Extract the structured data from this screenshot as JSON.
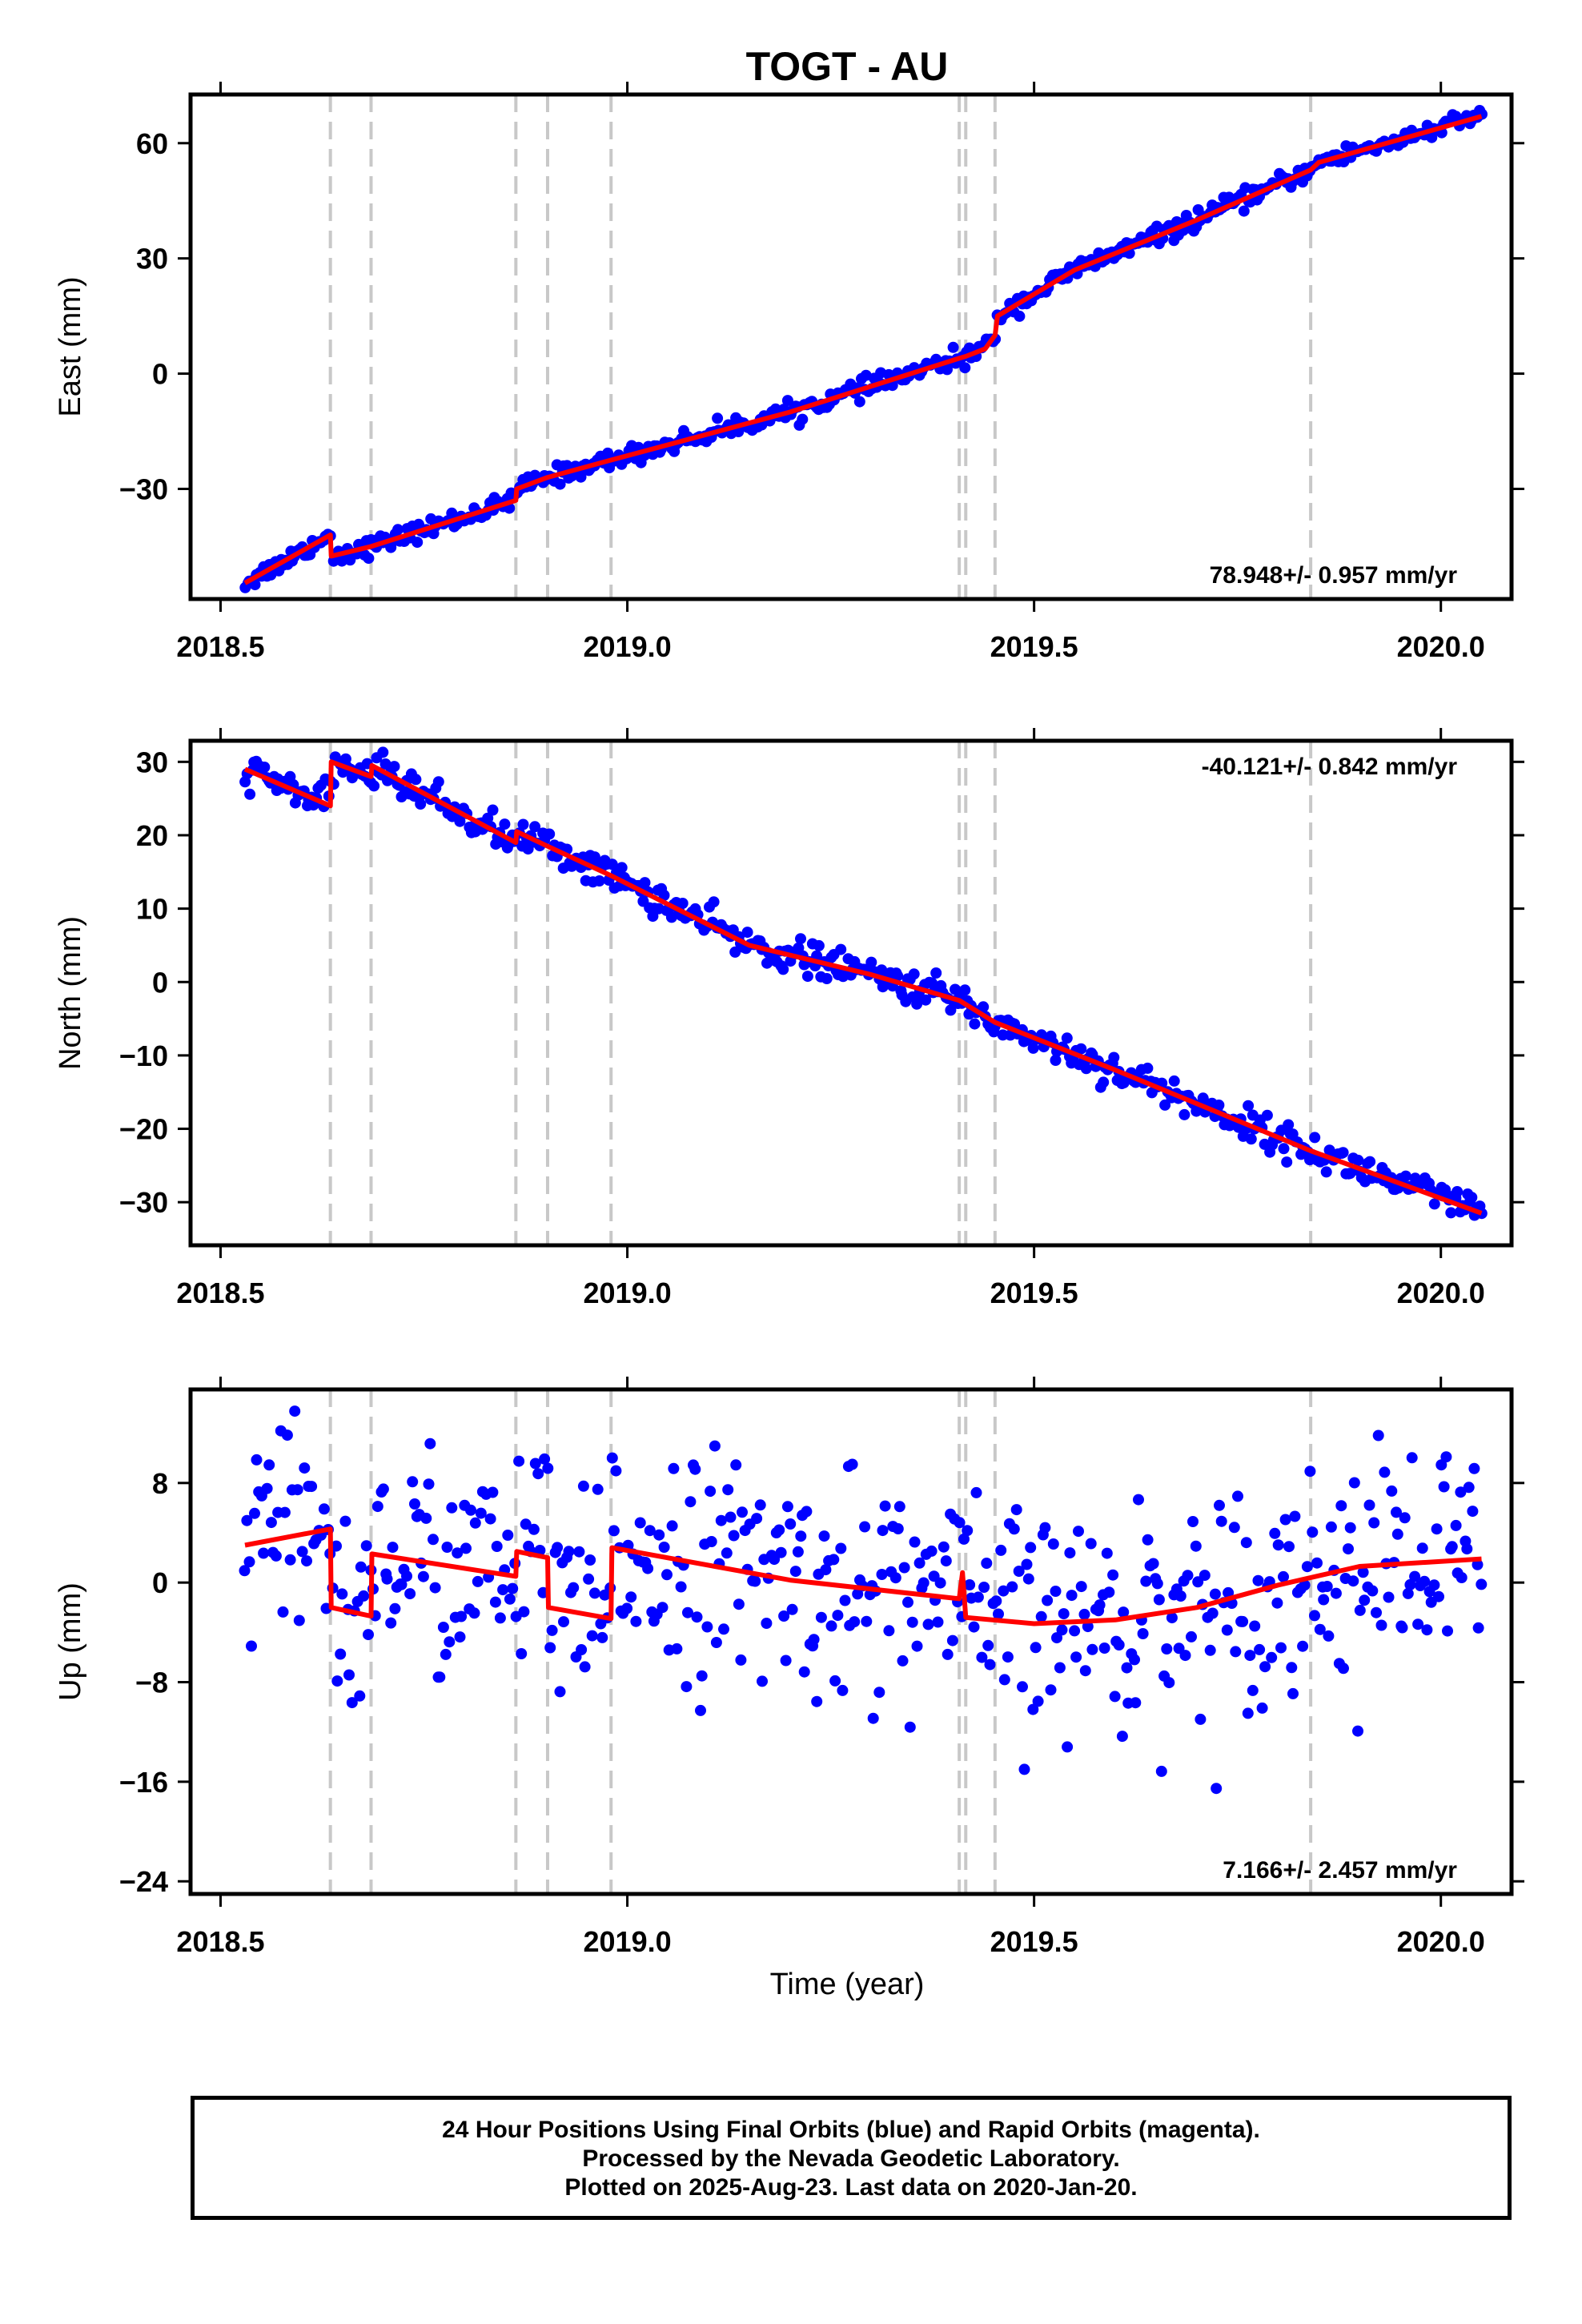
{
  "chart_data": {
    "type": "scatter",
    "title": "TOGT - AU",
    "xlabel": "Time (year)",
    "x_ticks": [
      "2018.5",
      "2019.0",
      "2019.5",
      "2020.0"
    ],
    "xlim": [
      2018.47,
      2020.08
    ],
    "break_lines": [
      2018.635,
      2018.685,
      2018.863,
      2018.902,
      2018.98,
      2019.408,
      2019.416,
      2019.452,
      2019.84
    ],
    "colors": {
      "points": "#0000ff",
      "model": "#ff0000",
      "break_lines": "#c8c8c8"
    },
    "panels": [
      {
        "name": "east",
        "ylabel": "East (mm)",
        "ylim": [
          -57,
          71
        ],
        "y_ticks": [
          60,
          30,
          0,
          -30
        ],
        "y_tick_labels": [
          "60",
          "30",
          "0",
          "−30"
        ],
        "rate_label": "78.948+/- 0.957 mm/yr",
        "rate_position": "bottom-right",
        "model_line": [
          [
            2018.53,
            -54.5
          ],
          [
            2018.635,
            -42
          ],
          [
            2018.636,
            -47.5
          ],
          [
            2018.685,
            -45
          ],
          [
            2018.863,
            -33
          ],
          [
            2018.864,
            -30
          ],
          [
            2018.902,
            -27
          ],
          [
            2018.98,
            -22.5
          ],
          [
            2019.2,
            -10
          ],
          [
            2019.408,
            4
          ],
          [
            2019.416,
            4.5
          ],
          [
            2019.44,
            6.5
          ],
          [
            2019.452,
            10
          ],
          [
            2019.455,
            15
          ],
          [
            2019.55,
            27
          ],
          [
            2019.7,
            40
          ],
          [
            2019.84,
            53
          ],
          [
            2019.85,
            55
          ],
          [
            2020.05,
            67
          ]
        ],
        "points_follow_model": true,
        "noise_mm": 1.2
      },
      {
        "name": "north",
        "ylabel": "North (mm)",
        "ylim": [
          -35,
          32
        ],
        "y_ticks": [
          30,
          20,
          10,
          0,
          -10,
          -20,
          -30
        ],
        "y_tick_labels": [
          "30",
          "20",
          "10",
          "0",
          "−10",
          "−20",
          "−30"
        ],
        "rate_label": "-40.121+/- 0.842 mm/yr",
        "rate_position": "top-right",
        "model_line": [
          [
            2018.53,
            29
          ],
          [
            2018.635,
            24
          ],
          [
            2018.636,
            30
          ],
          [
            2018.685,
            28
          ],
          [
            2018.686,
            29.5
          ],
          [
            2018.863,
            19
          ],
          [
            2018.864,
            20.5
          ],
          [
            2018.902,
            18.5
          ],
          [
            2018.98,
            14.5
          ],
          [
            2019.15,
            5
          ],
          [
            2019.3,
            1
          ],
          [
            2019.408,
            -2.5
          ],
          [
            2019.452,
            -5.5
          ],
          [
            2019.6,
            -12
          ],
          [
            2019.84,
            -23
          ],
          [
            2020.05,
            -31.5
          ]
        ],
        "points_follow_model": true,
        "noise_mm": 1.1
      },
      {
        "name": "up",
        "ylabel": "Up (mm)",
        "ylim": [
          -24.5,
          15
        ],
        "y_ticks": [
          8,
          0,
          -8,
          -16,
          -24
        ],
        "y_tick_labels": [
          "8",
          "0",
          "−8",
          "−16",
          "−24"
        ],
        "rate_label": "7.166+/- 2.457 mm/yr",
        "rate_position": "bottom-right",
        "model_line": [
          [
            2018.53,
            3
          ],
          [
            2018.635,
            4.3
          ],
          [
            2018.636,
            -2
          ],
          [
            2018.685,
            -2.7
          ],
          [
            2018.686,
            2.3
          ],
          [
            2018.863,
            0.5
          ],
          [
            2018.864,
            2.5
          ],
          [
            2018.902,
            2
          ],
          [
            2018.903,
            -2
          ],
          [
            2018.98,
            -2.9
          ],
          [
            2018.981,
            2.8
          ],
          [
            2019.2,
            0.2
          ],
          [
            2019.408,
            -1.3
          ],
          [
            2019.412,
            0.8
          ],
          [
            2019.416,
            -2.8
          ],
          [
            2019.5,
            -3.3
          ],
          [
            2019.6,
            -3
          ],
          [
            2019.7,
            -2
          ],
          [
            2019.8,
            -0.2
          ],
          [
            2019.9,
            1.3
          ],
          [
            2020.05,
            1.9
          ]
        ],
        "points_follow_model": true,
        "noise_mm": 4.5
      }
    ]
  },
  "footer": {
    "line1": "24 Hour Positions Using Final Orbits (blue) and Rapid Orbits (magenta).",
    "line2": "Processed by the Nevada Geodetic Laboratory.",
    "line3": "Plotted on 2025-Aug-23. Last data on 2020-Jan-20."
  }
}
